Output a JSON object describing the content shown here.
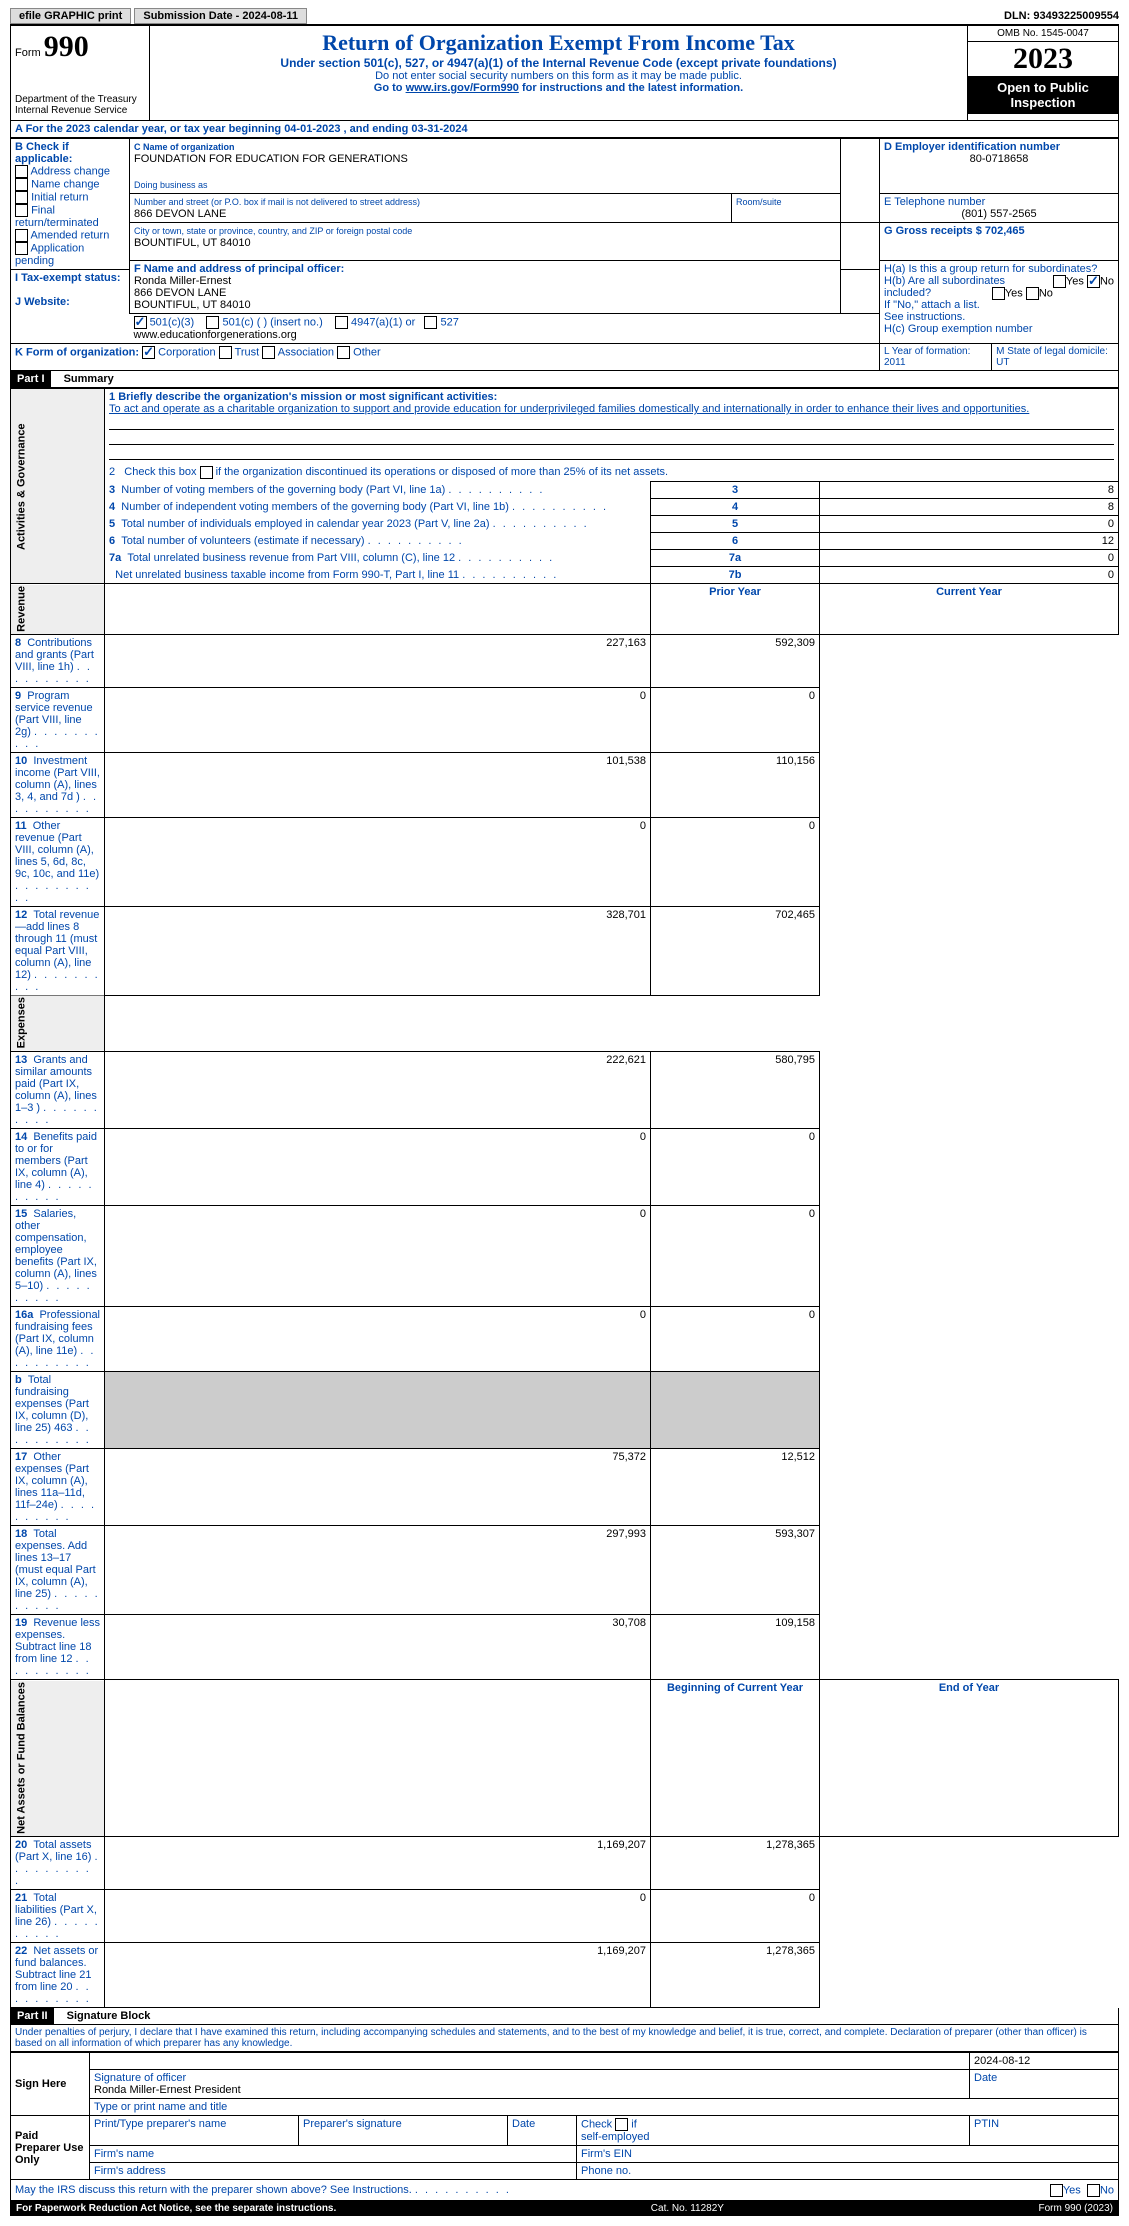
{
  "topbar": {
    "efile": "efile GRAPHIC print",
    "submission_label": "Submission Date - 2024-08-11",
    "dln_label": "DLN: 93493225009554"
  },
  "header": {
    "form_small": "Form",
    "form_number": "990",
    "title": "Return of Organization Exempt From Income Tax",
    "subtitle": "Under section 501(c), 527, or 4947(a)(1) of the Internal Revenue Code (except private foundations)",
    "warn": "Do not enter social security numbers on this form as it may be made public.",
    "goto_prefix": "Go to ",
    "goto_link": "www.irs.gov/Form990",
    "goto_suffix": " for instructions and the latest information.",
    "dept": "Department of the Treasury\nInternal Revenue Service",
    "omb": "OMB No. 1545-0047",
    "year": "2023",
    "open": "Open to Public Inspection"
  },
  "a_line": "A For the 2023 calendar year, or tax year beginning 04-01-2023   , and ending 03-31-2024",
  "boxB": {
    "label": "B Check if applicable:",
    "items": [
      "Address change",
      "Name change",
      "Initial return",
      "Final return/terminated",
      "Amended return",
      "Application pending"
    ]
  },
  "boxC": {
    "name_label": "C Name of organization",
    "name": "FOUNDATION FOR EDUCATION FOR GENERATIONS",
    "dba_label": "Doing business as",
    "street_label": "Number and street (or P.O. box if mail is not delivered to street address)",
    "street": "866 DEVON LANE",
    "room_label": "Room/suite",
    "city_label": "City or town, state or province, country, and ZIP or foreign postal code",
    "city": "BOUNTIFUL, UT  84010"
  },
  "boxD": {
    "label": "D Employer identification number",
    "value": "80-0718658"
  },
  "boxE": {
    "label": "E Telephone number",
    "value": "(801) 557-2565"
  },
  "boxG": {
    "label": "G Gross receipts $ 702,465"
  },
  "boxF": {
    "label": "F  Name and address of principal officer:",
    "lines": "Ronda Miller-Ernest\n866 DEVON LANE\nBOUNTIFUL, UT  84010"
  },
  "boxH": {
    "a": "H(a)  Is this a group return for subordinates?",
    "b": "H(b)  Are all subordinates included?",
    "b_note": "If \"No,\" attach a list. See instructions.",
    "c": "H(c)  Group exemption number"
  },
  "boxI": {
    "label": "I   Tax-exempt status:",
    "opts": {
      "c3": "501(c)(3)",
      "c_insert": "501(c) (  ) (insert no.)",
      "a4947": "4947(a)(1) or",
      "s527": "527"
    }
  },
  "boxJ": {
    "label": "J   Website:",
    "value": "www.educationforgenerations.org"
  },
  "boxK": {
    "label": "K Form of organization:",
    "opts": [
      "Corporation",
      "Trust",
      "Association",
      "Other"
    ]
  },
  "boxL": "L Year of formation: 2011",
  "boxM": "M State of legal domicile: UT",
  "part1": {
    "title": "Part I",
    "subtitle": "Summary",
    "l1_label": "1   Briefly describe the organization's mission or most significant activities:",
    "l1_text": "To act and operate as a charitable organization to support and provide education for underprivileged families domestically and internationally in order to enhance their lives and opportunities.",
    "l2": "2   Check this box        if the organization discontinued its operations or disposed of more than 25% of its net assets.",
    "gov_rows": [
      {
        "n": "3",
        "t": "Number of voting members of the governing body (Part VI, line 1a)",
        "box": "3",
        "v": "8"
      },
      {
        "n": "4",
        "t": "Number of independent voting members of the governing body (Part VI, line 1b)",
        "box": "4",
        "v": "8"
      },
      {
        "n": "5",
        "t": "Total number of individuals employed in calendar year 2023 (Part V, line 2a)",
        "box": "5",
        "v": "0"
      },
      {
        "n": "6",
        "t": "Total number of volunteers (estimate if necessary)",
        "box": "6",
        "v": "12"
      },
      {
        "n": "7a",
        "t": "Total unrelated business revenue from Part VIII, column (C), line 12",
        "box": "7a",
        "v": "0"
      },
      {
        "n": "",
        "t": "Net unrelated business taxable income from Form 990-T, Part I, line 11",
        "box": "7b",
        "v": "0"
      }
    ],
    "col_headers": {
      "prior": "Prior Year",
      "current": "Current Year",
      "begin": "Beginning of Current Year",
      "end": "End of Year"
    },
    "rev_rows": [
      {
        "n": "8",
        "t": "Contributions and grants (Part VIII, line 1h)",
        "py": "227,163",
        "cy": "592,309"
      },
      {
        "n": "9",
        "t": "Program service revenue (Part VIII, line 2g)",
        "py": "0",
        "cy": "0"
      },
      {
        "n": "10",
        "t": "Investment income (Part VIII, column (A), lines 3, 4, and 7d )",
        "py": "101,538",
        "cy": "110,156"
      },
      {
        "n": "11",
        "t": "Other revenue (Part VIII, column (A), lines 5, 6d, 8c, 9c, 10c, and 11e)",
        "py": "0",
        "cy": "0"
      },
      {
        "n": "12",
        "t": "Total revenue—add lines 8 through 11 (must equal Part VIII, column (A), line 12)",
        "py": "328,701",
        "cy": "702,465"
      }
    ],
    "exp_rows": [
      {
        "n": "13",
        "t": "Grants and similar amounts paid (Part IX, column (A), lines 1–3 )",
        "py": "222,621",
        "cy": "580,795"
      },
      {
        "n": "14",
        "t": "Benefits paid to or for members (Part IX, column (A), line 4)",
        "py": "0",
        "cy": "0"
      },
      {
        "n": "15",
        "t": "Salaries, other compensation, employee benefits (Part IX, column (A), lines 5–10)",
        "py": "0",
        "cy": "0"
      },
      {
        "n": "16a",
        "t": "Professional fundraising fees (Part IX, column (A), line 11e)",
        "py": "0",
        "cy": "0"
      },
      {
        "n": "b",
        "t": "Total fundraising expenses (Part IX, column (D), line 25) 463",
        "py": "GREY",
        "cy": "GREY"
      },
      {
        "n": "17",
        "t": "Other expenses (Part IX, column (A), lines 11a–11d, 11f–24e)",
        "py": "75,372",
        "cy": "12,512"
      },
      {
        "n": "18",
        "t": "Total expenses. Add lines 13–17 (must equal Part IX, column (A), line 25)",
        "py": "297,993",
        "cy": "593,307"
      },
      {
        "n": "19",
        "t": "Revenue less expenses. Subtract line 18 from line 12",
        "py": "30,708",
        "cy": "109,158"
      }
    ],
    "net_rows": [
      {
        "n": "20",
        "t": "Total assets (Part X, line 16)",
        "py": "1,169,207",
        "cy": "1,278,365"
      },
      {
        "n": "21",
        "t": "Total liabilities (Part X, line 26)",
        "py": "0",
        "cy": "0"
      },
      {
        "n": "22",
        "t": "Net assets or fund balances. Subtract line 21 from line 20",
        "py": "1,169,207",
        "cy": "1,278,365"
      }
    ]
  },
  "part2": {
    "title": "Part II",
    "subtitle": "Signature Block",
    "perjury": "Under penalties of perjury, I declare that I have examined this return, including accompanying schedules and statements, and to the best of my knowledge and belief, it is true, correct, and complete. Declaration of preparer (other than officer) is based on all information of which preparer has any knowledge.",
    "sign_here": "Sign Here",
    "sig_officer": "Signature of officer",
    "sig_name": "Ronda Miller-Ernest President",
    "sig_type": "Type or print name and title",
    "sig_date_label": "Date",
    "sig_date": "2024-08-12",
    "paid": "Paid Preparer Use Only",
    "prep_name": "Print/Type preparer's name",
    "prep_sig": "Preparer's signature",
    "prep_date": "Date",
    "prep_check": "Check        if self-employed",
    "ptin": "PTIN",
    "firm_name": "Firm's name",
    "firm_ein": "Firm's EIN",
    "firm_addr": "Firm's address",
    "phone": "Phone no."
  },
  "footer": {
    "discuss": "May the IRS discuss this return with the preparer shown above? See Instructions.",
    "paperwork": "For Paperwork Reduction Act Notice, see the separate instructions.",
    "cat": "Cat. No. 11282Y",
    "form": "Form 990 (2023)",
    "yes": "Yes",
    "no": "No"
  }
}
